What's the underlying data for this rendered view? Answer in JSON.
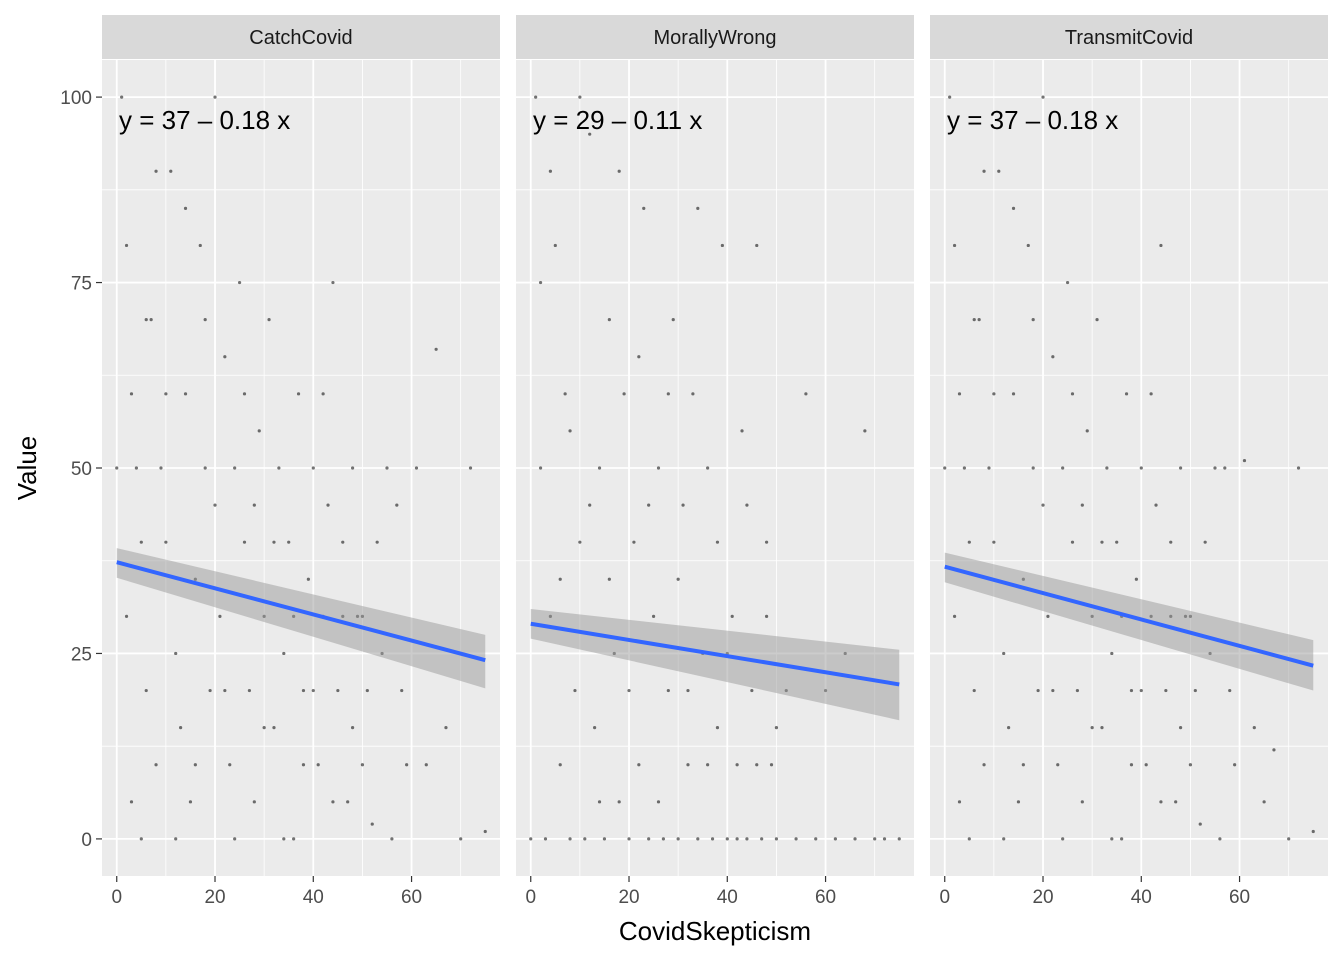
{
  "chart_data": {
    "type": "scatter",
    "facet_var": "Scenario",
    "xlabel": "CovidSkepticism",
    "ylabel": "Value",
    "xlim": [
      -3,
      78
    ],
    "ylim": [
      -5,
      105
    ],
    "x_ticks": [
      0,
      20,
      40,
      60
    ],
    "y_ticks": [
      0,
      25,
      50,
      75,
      100
    ],
    "grid": true,
    "point_color": "#000000",
    "fit_line_color": "#3366FF",
    "ci_band_color": "#999999",
    "panel_background": "#EBEBEB",
    "strip_background": "#D9D9D9",
    "panels": [
      {
        "name": "CatchCovid",
        "equation": "y = 37 – 0.18 x",
        "fit": {
          "intercept": 37.3,
          "slope": -0.176,
          "x_range": [
            0,
            75
          ]
        },
        "ci_start": [
          35.2,
          39.2
        ],
        "ci_end": [
          20.3,
          27.5
        ],
        "points": [
          [
            0,
            50
          ],
          [
            1,
            100
          ],
          [
            2,
            80
          ],
          [
            3,
            60
          ],
          [
            4,
            50
          ],
          [
            5,
            0
          ],
          [
            2,
            30
          ],
          [
            6,
            20
          ],
          [
            7,
            70
          ],
          [
            8,
            10
          ],
          [
            9,
            50
          ],
          [
            10,
            40
          ],
          [
            11,
            90
          ],
          [
            12,
            25
          ],
          [
            13,
            15
          ],
          [
            14,
            60
          ],
          [
            15,
            5
          ],
          [
            16,
            35
          ],
          [
            17,
            80
          ],
          [
            18,
            50
          ],
          [
            19,
            20
          ],
          [
            20,
            45
          ],
          [
            21,
            30
          ],
          [
            22,
            65
          ],
          [
            23,
            10
          ],
          [
            24,
            50
          ],
          [
            25,
            75
          ],
          [
            26,
            40
          ],
          [
            27,
            20
          ],
          [
            28,
            5
          ],
          [
            29,
            55
          ],
          [
            30,
            30
          ],
          [
            31,
            70
          ],
          [
            32,
            15
          ],
          [
            33,
            50
          ],
          [
            34,
            25
          ],
          [
            35,
            40
          ],
          [
            36,
            0
          ],
          [
            37,
            60
          ],
          [
            38,
            20
          ],
          [
            39,
            35
          ],
          [
            40,
            50
          ],
          [
            41,
            10
          ],
          [
            42,
            30
          ],
          [
            43,
            45
          ],
          [
            44,
            75
          ],
          [
            45,
            20
          ],
          [
            46,
            40
          ],
          [
            47,
            5
          ],
          [
            48,
            50
          ],
          [
            49,
            30
          ],
          [
            50,
            10
          ],
          [
            51,
            20
          ],
          [
            53,
            40
          ],
          [
            55,
            50
          ],
          [
            57,
            45
          ],
          [
            59,
            10
          ],
          [
            61,
            50
          ],
          [
            63,
            10
          ],
          [
            65,
            66
          ],
          [
            67,
            15
          ],
          [
            70,
            0
          ],
          [
            72,
            50
          ],
          [
            75,
            1
          ],
          [
            3,
            5
          ],
          [
            5,
            40
          ],
          [
            6,
            70
          ],
          [
            8,
            90
          ],
          [
            10,
            60
          ],
          [
            12,
            0
          ],
          [
            14,
            85
          ],
          [
            16,
            10
          ],
          [
            18,
            70
          ],
          [
            20,
            100
          ],
          [
            22,
            20
          ],
          [
            24,
            0
          ],
          [
            26,
            60
          ],
          [
            28,
            45
          ],
          [
            30,
            15
          ],
          [
            32,
            40
          ],
          [
            34,
            0
          ],
          [
            36,
            30
          ],
          [
            38,
            10
          ],
          [
            40,
            20
          ],
          [
            42,
            60
          ],
          [
            44,
            5
          ],
          [
            46,
            30
          ],
          [
            48,
            15
          ],
          [
            50,
            30
          ],
          [
            52,
            2
          ],
          [
            54,
            25
          ],
          [
            56,
            0
          ],
          [
            58,
            20
          ]
        ]
      },
      {
        "name": "MorallyWrong",
        "equation": "y = 29 – 0.11 x",
        "fit": {
          "intercept": 29.0,
          "slope": -0.109,
          "x_range": [
            0,
            75
          ]
        },
        "ci_start": [
          27.0,
          31.0
        ],
        "ci_end": [
          16.0,
          25.5
        ],
        "points": [
          [
            0,
            0
          ],
          [
            1,
            100
          ],
          [
            2,
            50
          ],
          [
            3,
            0
          ],
          [
            4,
            30
          ],
          [
            5,
            80
          ],
          [
            6,
            10
          ],
          [
            7,
            60
          ],
          [
            8,
            0
          ],
          [
            9,
            20
          ],
          [
            10,
            40
          ],
          [
            11,
            0
          ],
          [
            12,
            95
          ],
          [
            13,
            15
          ],
          [
            14,
            50
          ],
          [
            15,
            0
          ],
          [
            16,
            70
          ],
          [
            17,
            25
          ],
          [
            18,
            5
          ],
          [
            19,
            60
          ],
          [
            20,
            0
          ],
          [
            21,
            40
          ],
          [
            22,
            10
          ],
          [
            23,
            85
          ],
          [
            24,
            0
          ],
          [
            25,
            30
          ],
          [
            26,
            50
          ],
          [
            27,
            0
          ],
          [
            28,
            20
          ],
          [
            29,
            70
          ],
          [
            30,
            0
          ],
          [
            31,
            45
          ],
          [
            32,
            10
          ],
          [
            33,
            60
          ],
          [
            34,
            0
          ],
          [
            35,
            25
          ],
          [
            36,
            50
          ],
          [
            37,
            0
          ],
          [
            38,
            15
          ],
          [
            39,
            80
          ],
          [
            40,
            0
          ],
          [
            41,
            30
          ],
          [
            42,
            10
          ],
          [
            43,
            55
          ],
          [
            44,
            0
          ],
          [
            45,
            20
          ],
          [
            46,
            80
          ],
          [
            47,
            0
          ],
          [
            48,
            40
          ],
          [
            49,
            10
          ],
          [
            50,
            0
          ],
          [
            52,
            20
          ],
          [
            54,
            0
          ],
          [
            56,
            60
          ],
          [
            58,
            0
          ],
          [
            60,
            20
          ],
          [
            62,
            0
          ],
          [
            64,
            25
          ],
          [
            66,
            0
          ],
          [
            68,
            55
          ],
          [
            70,
            0
          ],
          [
            72,
            0
          ],
          [
            75,
            0
          ],
          [
            2,
            75
          ],
          [
            4,
            90
          ],
          [
            6,
            35
          ],
          [
            8,
            55
          ],
          [
            10,
            100
          ],
          [
            12,
            45
          ],
          [
            14,
            5
          ],
          [
            16,
            35
          ],
          [
            18,
            90
          ],
          [
            20,
            20
          ],
          [
            22,
            65
          ],
          [
            24,
            45
          ],
          [
            26,
            5
          ],
          [
            28,
            60
          ],
          [
            30,
            35
          ],
          [
            32,
            20
          ],
          [
            34,
            85
          ],
          [
            36,
            10
          ],
          [
            38,
            40
          ],
          [
            40,
            25
          ],
          [
            42,
            0
          ],
          [
            44,
            45
          ],
          [
            46,
            10
          ],
          [
            48,
            30
          ],
          [
            50,
            15
          ]
        ]
      },
      {
        "name": "TransmitCovid",
        "equation": "y = 37 – 0.18 x",
        "fit": {
          "intercept": 36.7,
          "slope": -0.178,
          "x_range": [
            0,
            75
          ]
        },
        "ci_start": [
          34.6,
          38.6
        ],
        "ci_end": [
          20.0,
          26.8
        ],
        "points": [
          [
            0,
            50
          ],
          [
            1,
            100
          ],
          [
            2,
            80
          ],
          [
            3,
            60
          ],
          [
            4,
            50
          ],
          [
            5,
            0
          ],
          [
            2,
            30
          ],
          [
            6,
            20
          ],
          [
            7,
            70
          ],
          [
            8,
            10
          ],
          [
            9,
            50
          ],
          [
            10,
            40
          ],
          [
            11,
            90
          ],
          [
            12,
            25
          ],
          [
            13,
            15
          ],
          [
            14,
            60
          ],
          [
            15,
            5
          ],
          [
            16,
            35
          ],
          [
            17,
            80
          ],
          [
            18,
            50
          ],
          [
            19,
            20
          ],
          [
            20,
            45
          ],
          [
            21,
            30
          ],
          [
            22,
            65
          ],
          [
            23,
            10
          ],
          [
            24,
            50
          ],
          [
            25,
            75
          ],
          [
            26,
            40
          ],
          [
            27,
            20
          ],
          [
            28,
            5
          ],
          [
            29,
            55
          ],
          [
            30,
            30
          ],
          [
            31,
            70
          ],
          [
            32,
            15
          ],
          [
            33,
            50
          ],
          [
            34,
            25
          ],
          [
            35,
            40
          ],
          [
            36,
            0
          ],
          [
            37,
            60
          ],
          [
            38,
            20
          ],
          [
            39,
            35
          ],
          [
            40,
            50
          ],
          [
            41,
            10
          ],
          [
            42,
            30
          ],
          [
            43,
            45
          ],
          [
            44,
            80
          ],
          [
            45,
            20
          ],
          [
            46,
            40
          ],
          [
            47,
            5
          ],
          [
            48,
            50
          ],
          [
            49,
            30
          ],
          [
            50,
            10
          ],
          [
            51,
            20
          ],
          [
            53,
            40
          ],
          [
            55,
            50
          ],
          [
            57,
            50
          ],
          [
            59,
            10
          ],
          [
            61,
            51
          ],
          [
            63,
            15
          ],
          [
            65,
            5
          ],
          [
            67,
            12
          ],
          [
            70,
            0
          ],
          [
            72,
            50
          ],
          [
            75,
            1
          ],
          [
            3,
            5
          ],
          [
            5,
            40
          ],
          [
            6,
            70
          ],
          [
            8,
            90
          ],
          [
            10,
            60
          ],
          [
            12,
            0
          ],
          [
            14,
            85
          ],
          [
            16,
            10
          ],
          [
            18,
            70
          ],
          [
            20,
            100
          ],
          [
            22,
            20
          ],
          [
            24,
            0
          ],
          [
            26,
            60
          ],
          [
            28,
            45
          ],
          [
            30,
            15
          ],
          [
            32,
            40
          ],
          [
            34,
            0
          ],
          [
            36,
            30
          ],
          [
            38,
            10
          ],
          [
            40,
            20
          ],
          [
            42,
            60
          ],
          [
            44,
            5
          ],
          [
            46,
            30
          ],
          [
            48,
            15
          ],
          [
            50,
            30
          ],
          [
            52,
            2
          ],
          [
            54,
            25
          ],
          [
            56,
            0
          ],
          [
            58,
            20
          ]
        ]
      }
    ]
  }
}
